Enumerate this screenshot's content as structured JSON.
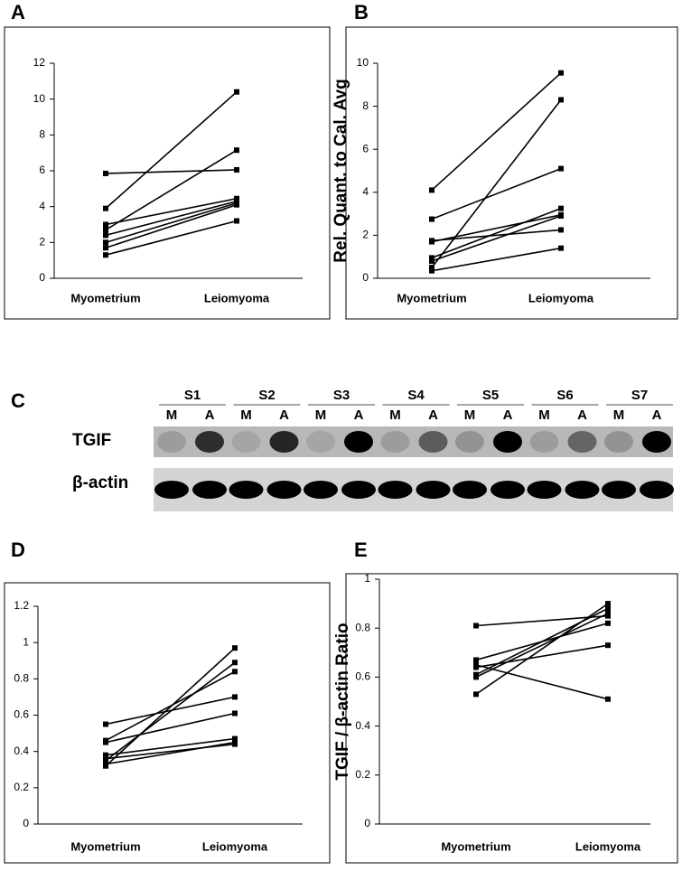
{
  "chart_data": [
    {
      "panel": "A",
      "type": "line",
      "color": "#000000",
      "categories": [
        "Myometrium",
        "Leiomyoma"
      ],
      "ylim": [
        0,
        12
      ],
      "yticks": [
        0,
        2,
        4,
        6,
        8,
        10,
        12
      ],
      "series": [
        {
          "values": [
            3.9,
            10.4
          ]
        },
        {
          "values": [
            5.85,
            6.05
          ]
        },
        {
          "values": [
            2.7,
            7.15
          ]
        },
        {
          "values": [
            3.0,
            4.45
          ]
        },
        {
          "values": [
            2.4,
            4.3
          ]
        },
        {
          "values": [
            2.0,
            4.2
          ]
        },
        {
          "values": [
            1.7,
            4.1
          ]
        },
        {
          "values": [
            1.3,
            3.2
          ]
        }
      ]
    },
    {
      "panel": "B",
      "type": "line",
      "color": "#000000",
      "ylabel": "Rel. Quant. to Cal. Avg",
      "categories": [
        "Myometrium",
        "Leiomyoma"
      ],
      "ylim": [
        0,
        10
      ],
      "yticks": [
        0,
        2,
        4,
        6,
        8,
        10
      ],
      "series": [
        {
          "values": [
            4.1,
            9.55
          ]
        },
        {
          "values": [
            0.5,
            8.3
          ]
        },
        {
          "values": [
            2.75,
            5.1
          ]
        },
        {
          "values": [
            1.75,
            2.25
          ]
        },
        {
          "values": [
            1.7,
            2.95
          ]
        },
        {
          "values": [
            0.95,
            3.25
          ]
        },
        {
          "values": [
            0.8,
            2.9
          ]
        },
        {
          "values": [
            0.35,
            1.4
          ]
        }
      ]
    },
    {
      "panel": "D",
      "type": "line",
      "color": "#000000",
      "categories": [
        "Myometrium",
        "Leiomyoma"
      ],
      "ylim": [
        0,
        1.2
      ],
      "yticks": [
        0,
        0.2,
        0.4,
        0.6,
        0.8,
        1,
        1.2
      ],
      "series": [
        {
          "values": [
            0.55,
            0.7
          ]
        },
        {
          "values": [
            0.32,
            0.97
          ]
        },
        {
          "values": [
            0.35,
            0.89
          ]
        },
        {
          "values": [
            0.46,
            0.84
          ]
        },
        {
          "values": [
            0.45,
            0.61
          ]
        },
        {
          "values": [
            0.38,
            0.47
          ]
        },
        {
          "values": [
            0.36,
            0.44
          ]
        },
        {
          "values": [
            0.33,
            0.45
          ]
        }
      ]
    },
    {
      "panel": "E",
      "type": "line",
      "color": "#000000",
      "ylabel": "TGIF / β-actin Ratio",
      "categories": [
        "Myometrium",
        "Leiomyoma"
      ],
      "ylim": [
        0,
        1
      ],
      "yticks": [
        0,
        0.2,
        0.4,
        0.6,
        0.8,
        1
      ],
      "series": [
        {
          "values": [
            0.81,
            0.85
          ]
        },
        {
          "values": [
            0.65,
            0.51
          ]
        },
        {
          "values": [
            0.53,
            0.9
          ]
        },
        {
          "values": [
            0.61,
            0.88
          ]
        },
        {
          "values": [
            0.6,
            0.86
          ]
        },
        {
          "values": [
            0.67,
            0.82
          ]
        },
        {
          "values": [
            0.64,
            0.73
          ]
        }
      ]
    }
  ],
  "blot": {
    "panel": "C",
    "samples": [
      "S1",
      "S2",
      "S3",
      "S4",
      "S5",
      "S6",
      "S7"
    ],
    "lanes": [
      "M",
      "A",
      "M",
      "A",
      "M",
      "A",
      "M",
      "A",
      "M",
      "A",
      "M",
      "A",
      "M",
      "A"
    ],
    "rows": [
      "TGIF",
      "β-actin"
    ]
  }
}
